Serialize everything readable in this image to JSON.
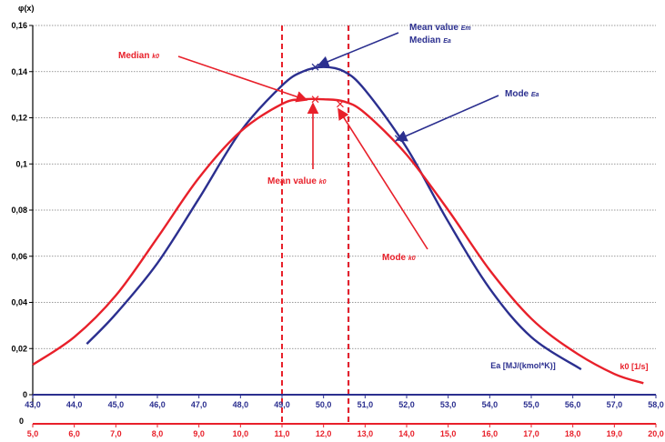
{
  "chart_data": {
    "type": "line",
    "title": "",
    "ylabel": "φ(x)",
    "ylim": [
      0,
      0.16
    ],
    "yticks": [
      "0",
      "0,02",
      "0,04",
      "0,06",
      "0,08",
      "0,1",
      "0,12",
      "0,14",
      "0,16"
    ],
    "grid": true,
    "x_axes": [
      {
        "name": "E",
        "label": "Ea [MJ/(kmol*K)]",
        "color": "#2b2f8f",
        "xlim": [
          43,
          58
        ],
        "ticks": [
          "43,0",
          "44,0",
          "45,0",
          "46,0",
          "47,0",
          "48,0",
          "49,0",
          "50,0",
          "51,0",
          "52,0",
          "53,0",
          "54,0",
          "55,0",
          "56,0",
          "57,0",
          "58,0"
        ]
      },
      {
        "name": "k",
        "label": "k0 [1/s]",
        "color": "#e8202a",
        "xlim": [
          5,
          20
        ],
        "ticks": [
          "5,0",
          "6,0",
          "7,0",
          "8,0",
          "9,0",
          "10,0",
          "11,0",
          "12,0",
          "13,0",
          "14,0",
          "15,0",
          "16,0",
          "17,0",
          "18,0",
          "19,0",
          "20,0"
        ]
      }
    ],
    "series": [
      {
        "name": "Ea",
        "axis": "E",
        "color": "#2b2f8f",
        "x": [
          44.3,
          45.0,
          46.0,
          47.0,
          48.0,
          49.0,
          49.5,
          50.0,
          50.5,
          51.0,
          52.0,
          53.0,
          54.0,
          55.0,
          56.2
        ],
        "y": [
          0.022,
          0.035,
          0.057,
          0.085,
          0.114,
          0.134,
          0.14,
          0.142,
          0.14,
          0.132,
          0.107,
          0.075,
          0.046,
          0.025,
          0.011
        ]
      },
      {
        "name": "k0",
        "axis": "k",
        "color": "#e8202a",
        "x": [
          5.0,
          6.0,
          7.0,
          8.0,
          9.0,
          10.0,
          11.0,
          11.5,
          12.0,
          12.5,
          13.0,
          14.0,
          15.0,
          16.0,
          17.0,
          18.0,
          19.0,
          19.7
        ],
        "y": [
          0.013,
          0.025,
          0.043,
          0.068,
          0.094,
          0.114,
          0.126,
          0.128,
          0.128,
          0.127,
          0.122,
          0.104,
          0.08,
          0.054,
          0.033,
          0.019,
          0.009,
          0.005
        ]
      }
    ],
    "reference_lines": [
      {
        "axis": "E",
        "x": 49.0,
        "color": "#2b2f8f"
      },
      {
        "axis": "k",
        "x": 11.0,
        "color": "#e8202a"
      },
      {
        "axis": "E",
        "x": 50.6,
        "color": "#2b2f8f"
      },
      {
        "axis": "k",
        "x": 12.6,
        "color": "#e8202a"
      }
    ],
    "markers": [
      {
        "axis": "E",
        "x": 49.8,
        "y": 0.142,
        "color": "#2b2f8f"
      },
      {
        "axis": "E",
        "x": 51.8,
        "y": 0.111,
        "color": "#2b2f8f"
      },
      {
        "axis": "k",
        "x": 11.8,
        "y": 0.128,
        "color": "#e8202a"
      },
      {
        "axis": "k",
        "x": 12.4,
        "y": 0.126,
        "color": "#e8202a"
      }
    ],
    "annotations": {
      "blue_mean_median": {
        "line1": "Mean value ",
        "sub1": "Em",
        "line2": "Median ",
        "sub2": "Ea"
      },
      "blue_mode": {
        "text": "Mode ",
        "sub": "Ea"
      },
      "red_median": {
        "text": "Median ",
        "sub": "k0"
      },
      "red_mean": {
        "text": "Mean value ",
        "sub": "k0"
      },
      "red_mode": {
        "text": "Mode ",
        "sub": "k0"
      }
    }
  }
}
